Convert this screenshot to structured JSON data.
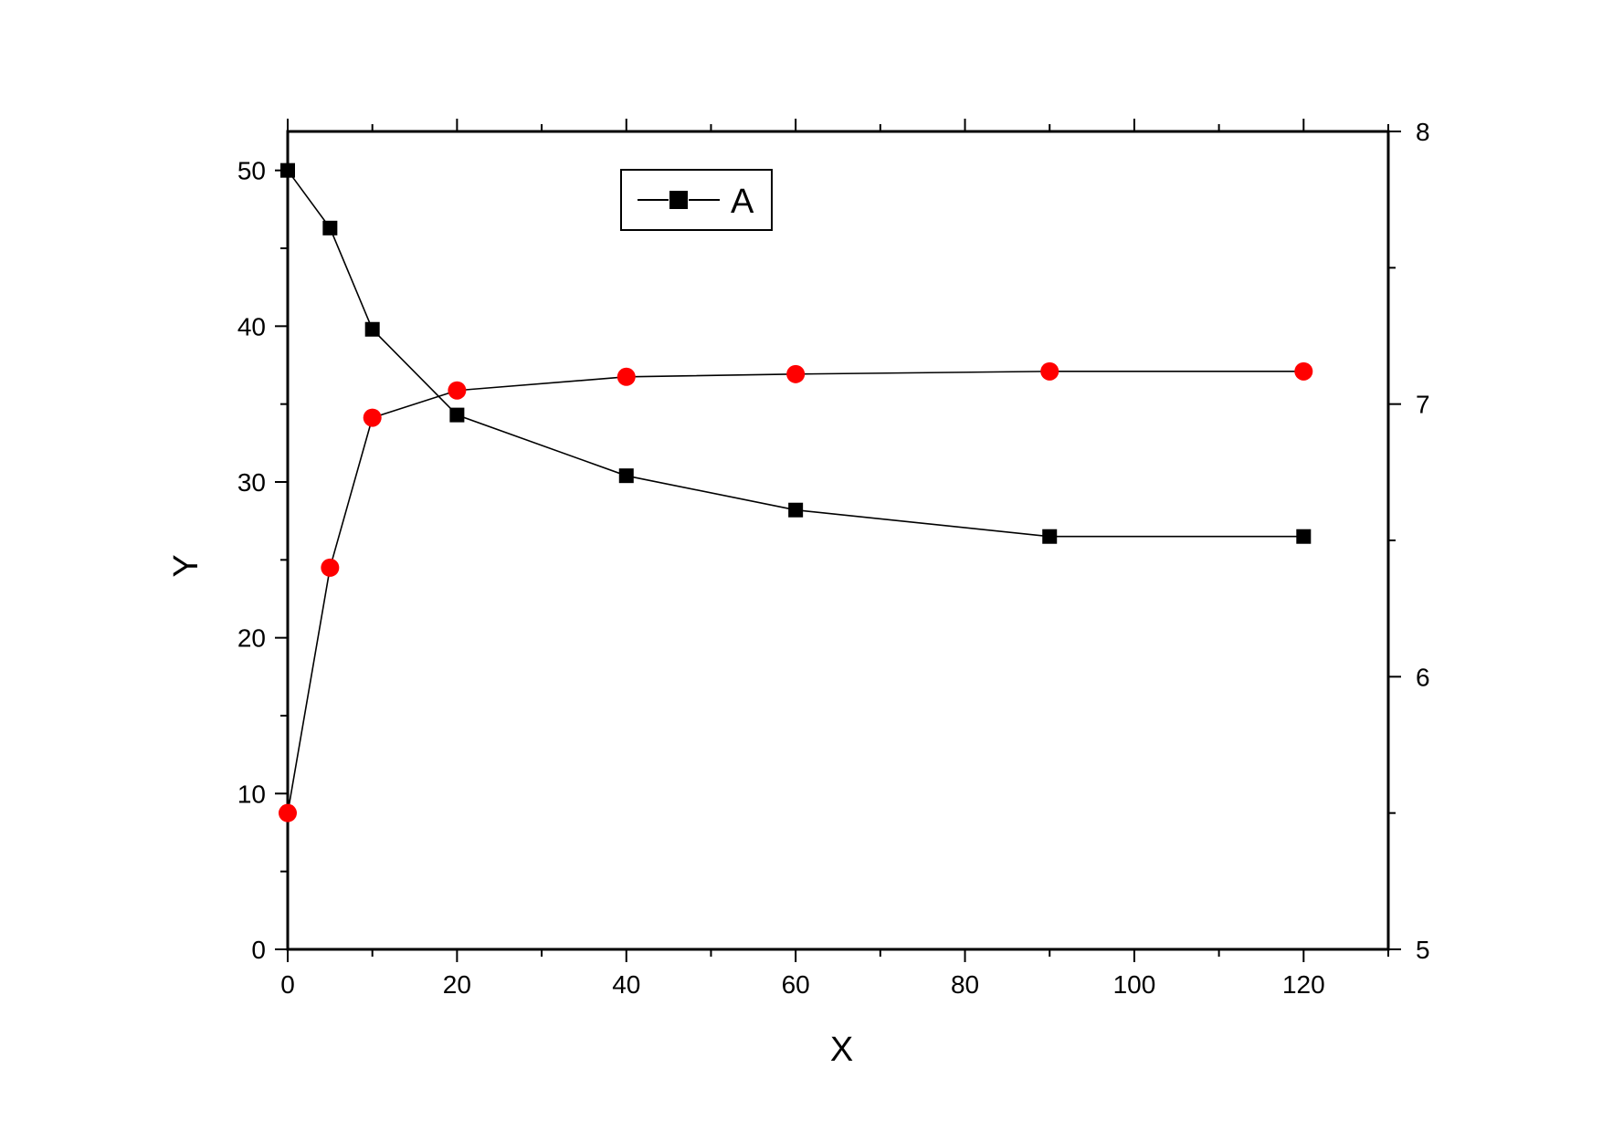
{
  "chart_data": {
    "type": "line",
    "xlabel": "X",
    "ylabel": "Y",
    "y2label": "",
    "xlim": [
      0,
      130
    ],
    "ylim": [
      0,
      52.5
    ],
    "y2lim": [
      5,
      8
    ],
    "x_ticks": [
      "0",
      "20",
      "40",
      "60",
      "80",
      "100",
      "120"
    ],
    "y_ticks": [
      "0",
      "10",
      "20",
      "30",
      "40",
      "50"
    ],
    "y2_ticks": [
      "5",
      "6",
      "7",
      "8"
    ],
    "grid": false,
    "legend_position": "top-center",
    "x": [
      0,
      5,
      10,
      20,
      40,
      60,
      90,
      120
    ],
    "series": [
      {
        "name": "A",
        "axis": "left",
        "marker": "square",
        "color": "#000000",
        "values": [
          50.0,
          46.3,
          39.8,
          34.3,
          30.4,
          28.2,
          26.5,
          26.5
        ]
      },
      {
        "axis": "right",
        "marker": "circle",
        "color": "#ff0000",
        "values": [
          5.5,
          6.4,
          6.95,
          7.05,
          7.1,
          7.11,
          7.12,
          7.12
        ]
      }
    ]
  }
}
